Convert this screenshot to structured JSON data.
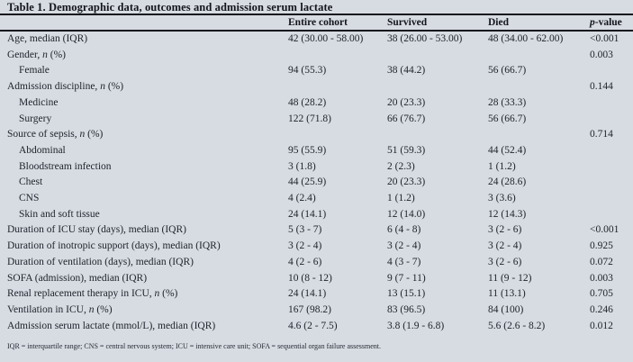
{
  "page": {
    "background_color": "#d7dbe2",
    "text_color": "#20242c",
    "rule_color": "#17191d"
  },
  "table": {
    "title": "Table 1. Demographic data, outcomes and admission serum lactate",
    "columns": [
      [
        {
          "text": "Entire cohort",
          "italic": false
        }
      ],
      [
        {
          "text": "Survived",
          "italic": false
        }
      ],
      [
        {
          "text": "Died",
          "italic": false
        }
      ],
      [
        {
          "text": "p",
          "italic": true
        },
        {
          "text": "-value",
          "italic": false
        }
      ]
    ],
    "rows": [
      {
        "label": [
          {
            "text": "Age, median (IQR)",
            "italic": false
          }
        ],
        "indent": false,
        "values": [
          "42 (30.00 - 58.00)",
          "38 (26.00 - 53.00)",
          "48 (34.00 - 62.00)",
          "<0.001"
        ]
      },
      {
        "label": [
          {
            "text": "Gender, ",
            "italic": false
          },
          {
            "text": "n",
            "italic": true
          },
          {
            "text": " (%)",
            "italic": false
          }
        ],
        "indent": false,
        "values": [
          "",
          "",
          "",
          "0.003"
        ]
      },
      {
        "label": [
          {
            "text": "Female",
            "italic": false
          }
        ],
        "indent": true,
        "values": [
          "94 (55.3)",
          "38 (44.2)",
          "56 (66.7)",
          ""
        ]
      },
      {
        "label": [
          {
            "text": "Admission discipline, ",
            "italic": false
          },
          {
            "text": "n",
            "italic": true
          },
          {
            "text": " (%)",
            "italic": false
          }
        ],
        "indent": false,
        "values": [
          "",
          "",
          "",
          "0.144"
        ]
      },
      {
        "label": [
          {
            "text": "Medicine",
            "italic": false
          }
        ],
        "indent": true,
        "values": [
          "48 (28.2)",
          "20 (23.3)",
          "28 (33.3)",
          ""
        ]
      },
      {
        "label": [
          {
            "text": "Surgery",
            "italic": false
          }
        ],
        "indent": true,
        "values": [
          "122 (71.8)",
          "66 (76.7)",
          "56 (66.7)",
          ""
        ]
      },
      {
        "label": [
          {
            "text": "Source of sepsis, ",
            "italic": false
          },
          {
            "text": "n",
            "italic": true
          },
          {
            "text": " (%)",
            "italic": false
          }
        ],
        "indent": false,
        "values": [
          "",
          "",
          "",
          "0.714"
        ]
      },
      {
        "label": [
          {
            "text": "Abdominal",
            "italic": false
          }
        ],
        "indent": true,
        "values": [
          "95 (55.9)",
          "51 (59.3)",
          "44 (52.4)",
          ""
        ]
      },
      {
        "label": [
          {
            "text": "Bloodstream infection",
            "italic": false
          }
        ],
        "indent": true,
        "values": [
          "3 (1.8)",
          "2 (2.3)",
          "1 (1.2)",
          ""
        ]
      },
      {
        "label": [
          {
            "text": "Chest",
            "italic": false
          }
        ],
        "indent": true,
        "values": [
          "44 (25.9)",
          "20 (23.3)",
          "24 (28.6)",
          ""
        ]
      },
      {
        "label": [
          {
            "text": "CNS",
            "italic": false
          }
        ],
        "indent": true,
        "values": [
          "4 (2.4)",
          "1 (1.2)",
          "3 (3.6)",
          ""
        ]
      },
      {
        "label": [
          {
            "text": "Skin and soft tissue",
            "italic": false
          }
        ],
        "indent": true,
        "values": [
          "24 (14.1)",
          "12 (14.0)",
          "12 (14.3)",
          ""
        ]
      },
      {
        "label": [
          {
            "text": "Duration of ICU stay (days), median (IQR)",
            "italic": false
          }
        ],
        "indent": false,
        "values": [
          "5 (3 - 7)",
          "6 (4 - 8)",
          "3 (2 - 6)",
          "<0.001"
        ]
      },
      {
        "label": [
          {
            "text": "Duration of inotropic support (days), median (IQR)",
            "italic": false
          }
        ],
        "indent": false,
        "values": [
          "3 (2 - 4)",
          "3 (2 - 4)",
          "3 (2 - 4)",
          "0.925"
        ]
      },
      {
        "label": [
          {
            "text": "Duration of ventilation (days), median (IQR)",
            "italic": false
          }
        ],
        "indent": false,
        "values": [
          "4 (2 - 6)",
          "4 (3 - 7)",
          "3 (2 - 6)",
          "0.072"
        ]
      },
      {
        "label": [
          {
            "text": "SOFA (admission), median (IQR)",
            "italic": false
          }
        ],
        "indent": false,
        "values": [
          "10 (8 - 12)",
          "9 (7 - 11)",
          "11 (9 - 12)",
          "0.003"
        ]
      },
      {
        "label": [
          {
            "text": "Renal replacement therapy in ICU, ",
            "italic": false
          },
          {
            "text": "n",
            "italic": true
          },
          {
            "text": " (%)",
            "italic": false
          }
        ],
        "indent": false,
        "values": [
          "24 (14.1)",
          "13 (15.1)",
          "11 (13.1)",
          "0.705"
        ]
      },
      {
        "label": [
          {
            "text": "Ventilation in ICU, ",
            "italic": false
          },
          {
            "text": "n",
            "italic": true
          },
          {
            "text": " (%)",
            "italic": false
          }
        ],
        "indent": false,
        "values": [
          "167 (98.2)",
          "83 (96.5)",
          "84 (100)",
          "0.246"
        ]
      },
      {
        "label": [
          {
            "text": "Admission serum lactate (mmol/L), median (IQR)",
            "italic": false
          }
        ],
        "indent": false,
        "values": [
          "4.6 (2 - 7.5)",
          "3.8 (1.9 - 6.8)",
          "5.6 (2.6 - 8.2)",
          "0.012"
        ]
      }
    ],
    "footnote": "IQR = interquartile range; CNS = central nervous system; ICU = intensive care unit; SOFA = sequential organ failure assessment."
  }
}
